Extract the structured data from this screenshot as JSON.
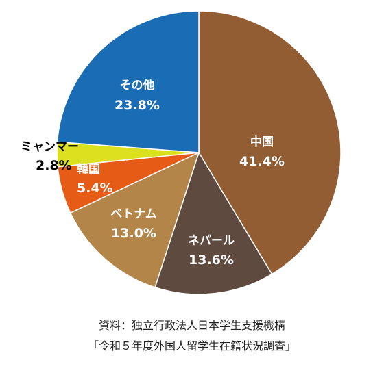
{
  "chart_data": {
    "type": "pie",
    "title": "",
    "categories": [
      "中国",
      "ネパール",
      "ベトナム",
      "韓国",
      "ミャンマー",
      "その他"
    ],
    "values": [
      41.4,
      13.6,
      13.0,
      5.4,
      2.8,
      23.8
    ],
    "value_labels": [
      "41.4%",
      "13.6%",
      "13.0%",
      "5.4%",
      "2.8%",
      "23.8%"
    ],
    "colors": [
      "#935d33",
      "#5e4a3e",
      "#b38549",
      "#e65c17",
      "#dbe01f",
      "#1a6db5"
    ],
    "label_colors": [
      "#ffffff",
      "#ffffff",
      "#ffffff",
      "#ffffff",
      "#000000",
      "#ffffff"
    ],
    "start": "12 o'clock",
    "direction": "clockwise",
    "legend": "none"
  },
  "source": {
    "line1": "資料：独立行政法人日本学生支援機構",
    "line2": "「令和５年度外国人留学生在籍状況調査」"
  }
}
